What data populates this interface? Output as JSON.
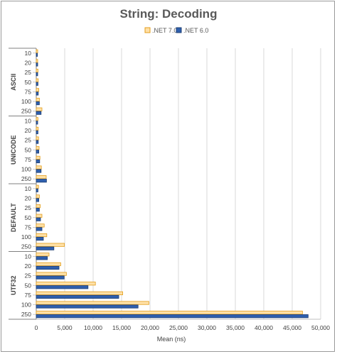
{
  "chart_data": {
    "type": "bar",
    "orientation": "horizontal",
    "title": "String: Decoding",
    "xlabel": "Mean (ns)",
    "ylabel": "",
    "xlim": [
      0,
      50000
    ],
    "x_ticks": [
      "0",
      "5,000",
      "10,000",
      "15,000",
      "20,000",
      "25,000",
      "30,000",
      "35,000",
      "40,000",
      "45,000",
      "50,000"
    ],
    "grid": true,
    "legend_position": "top",
    "colors": {
      "net7": "#FFE0A6",
      "net7_border": "#E39E1C",
      "net6": "#2E5FAE",
      "net6_border": "#1F3F73"
    },
    "groups": [
      {
        "name": "ASCII",
        "categories": [
          "10",
          "20",
          "25",
          "50",
          "75",
          "100",
          "250"
        ]
      },
      {
        "name": "UNICODE",
        "categories": [
          "10",
          "20",
          "25",
          "50",
          "75",
          "100",
          "250"
        ]
      },
      {
        "name": "DEFAULT",
        "categories": [
          "10",
          "20",
          "25",
          "50",
          "75",
          "100",
          "250"
        ]
      },
      {
        "name": "UTF32",
        "categories": [
          "10",
          "20",
          "25",
          "50",
          "75",
          "100",
          "250"
        ]
      }
    ],
    "series": [
      {
        "name": ".NET 7.0",
        "values": [
          250,
          250,
          300,
          350,
          450,
          550,
          1000,
          300,
          350,
          400,
          500,
          650,
          900,
          1750,
          400,
          550,
          700,
          1000,
          1400,
          1850,
          4950,
          2250,
          4300,
          5300,
          10400,
          15200,
          19800,
          46800
        ]
      },
      {
        "name": ".NET 6.0",
        "values": [
          200,
          250,
          250,
          300,
          350,
          550,
          850,
          250,
          300,
          350,
          450,
          600,
          850,
          1800,
          300,
          450,
          550,
          750,
          1000,
          1250,
          3100,
          1950,
          4000,
          4900,
          9100,
          14500,
          17900,
          47800
        ]
      }
    ]
  }
}
